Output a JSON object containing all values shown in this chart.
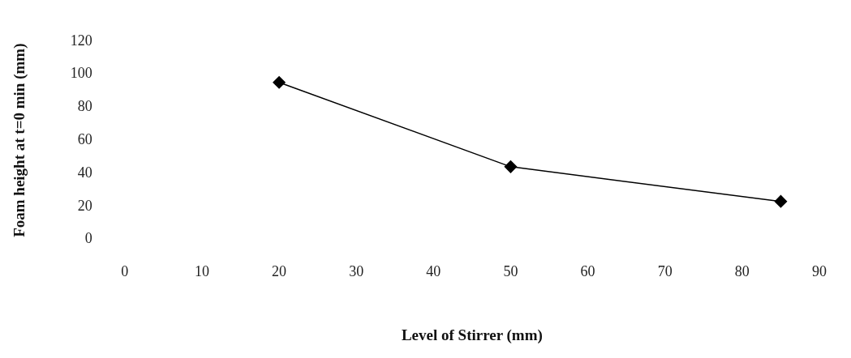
{
  "chart_data": {
    "type": "line",
    "xlabel": "Level of Stirrer (mm)",
    "ylabel": "Foam height at t=0 min (mm)",
    "x": [
      20,
      50,
      85
    ],
    "series": [
      {
        "color": "#000000",
        "values": [
          95,
          44,
          23
        ]
      }
    ],
    "xlim": [
      0,
      90
    ],
    "xticks": [
      0,
      10,
      20,
      30,
      40,
      50,
      60,
      70,
      80,
      90
    ],
    "ylim": [
      0,
      120
    ],
    "yticks": [
      0,
      20,
      40,
      60,
      80,
      100,
      120
    ],
    "grid": false,
    "legend": false,
    "marker": "diamond",
    "line_style": "solid"
  }
}
